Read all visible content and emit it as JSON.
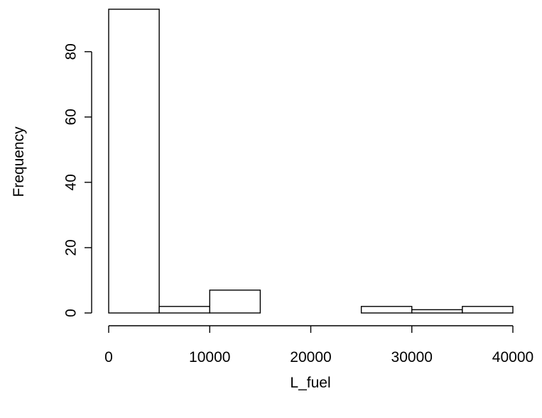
{
  "chart_data": {
    "type": "histogram",
    "title": "",
    "xlabel": "L_fuel",
    "ylabel": "Frequency",
    "xlim": [
      0,
      40000
    ],
    "ylim": [
      0,
      93
    ],
    "bins": [
      {
        "start": 0,
        "end": 5000,
        "count": 93
      },
      {
        "start": 5000,
        "end": 10000,
        "count": 2
      },
      {
        "start": 10000,
        "end": 15000,
        "count": 7
      },
      {
        "start": 15000,
        "end": 20000,
        "count": 0
      },
      {
        "start": 20000,
        "end": 25000,
        "count": 0
      },
      {
        "start": 25000,
        "end": 30000,
        "count": 2
      },
      {
        "start": 30000,
        "end": 35000,
        "count": 1
      },
      {
        "start": 35000,
        "end": 40000,
        "count": 2
      }
    ],
    "x_ticks": [
      0,
      10000,
      20000,
      30000,
      40000
    ],
    "x_tick_labels": [
      "0",
      "10000",
      "20000",
      "30000",
      "40000"
    ],
    "y_ticks": [
      0,
      20,
      40,
      60,
      80
    ],
    "y_tick_labels": [
      "0",
      "20",
      "40",
      "60",
      "80"
    ],
    "grid": false,
    "legend": "none",
    "bar_fill": "#ffffff",
    "bar_stroke": "#000000"
  }
}
